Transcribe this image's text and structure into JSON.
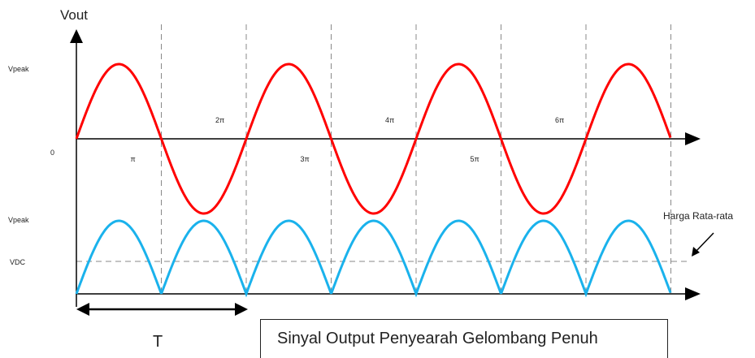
{
  "labels": {
    "vout": "Vout",
    "vpeak_top": "Vpeak",
    "zero": "0",
    "vpeak_bottom": "Vpeak",
    "vdc": "VDC",
    "period": "T",
    "average_value": "Harga Rata-rata",
    "caption": "Sinyal Output Penyearah Gelombang Penuh"
  },
  "angle_labels": [
    "π",
    "2π",
    "3π",
    "4π",
    "5π",
    "6π"
  ],
  "colors": {
    "input_wave": "#ff0000",
    "rectified_wave": "#1ab2ec",
    "axis": "#000000",
    "guide_lines": "#888888"
  }
}
